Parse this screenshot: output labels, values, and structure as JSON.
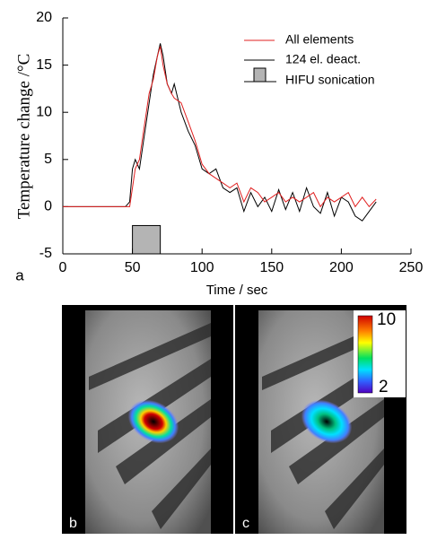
{
  "chart_data": {
    "type": "line",
    "y_label": "Temperature change /°C",
    "x_label": "Time / sec",
    "panel_label": "a",
    "x": [
      0,
      45,
      48,
      50,
      52,
      55,
      58,
      60,
      62,
      65,
      68,
      70,
      72,
      75,
      78,
      80,
      85,
      90,
      95,
      100,
      105,
      110,
      115,
      120,
      125,
      130,
      135,
      140,
      145,
      150,
      155,
      160,
      165,
      170,
      175,
      180,
      185,
      190,
      195,
      200,
      205,
      210,
      215,
      220,
      225
    ],
    "series": [
      {
        "name": "All elements",
        "color": "#e02020",
        "values": [
          0,
          0,
          0,
          2,
          4,
          5,
          8,
          10,
          12,
          13.5,
          16,
          17,
          15,
          13,
          12,
          11.5,
          11,
          9,
          7,
          4.5,
          3.5,
          3,
          2.5,
          2,
          2.5,
          0.5,
          2,
          1.5,
          0.5,
          1,
          1.5,
          0.5,
          1,
          0.5,
          1,
          1.5,
          0,
          1,
          0.5,
          1,
          1.5,
          0,
          1,
          0,
          0.8
        ]
      },
      {
        "name": "124 el. deact.",
        "color": "#000000",
        "values": [
          0,
          0,
          0.5,
          4,
          5,
          4,
          7,
          9,
          11,
          14,
          16,
          17.3,
          16,
          13,
          12,
          13,
          10,
          8,
          6.5,
          4,
          3.5,
          4,
          2,
          1.5,
          2,
          -0.5,
          1.5,
          0,
          1,
          -0.5,
          1.8,
          -0.3,
          1.5,
          -0.5,
          2,
          0,
          -0.7,
          1.5,
          -1,
          1,
          0.5,
          -1,
          -1.5,
          -0.5,
          0.5
        ]
      }
    ],
    "sonication": {
      "name": "HIFU sonication",
      "color": "#b4b4b4",
      "x": [
        50,
        70
      ],
      "y": [
        -5,
        -2
      ]
    },
    "xlim": [
      0,
      250
    ],
    "xticks": [
      0,
      50,
      100,
      150,
      200,
      250
    ],
    "ylim": [
      -5,
      20
    ],
    "yticks": [
      -5,
      0,
      5,
      10,
      15,
      20
    ]
  },
  "images": {
    "panels": [
      {
        "label": "b"
      },
      {
        "label": "c"
      }
    ],
    "colorbar": {
      "max": 10,
      "min": 2
    }
  }
}
